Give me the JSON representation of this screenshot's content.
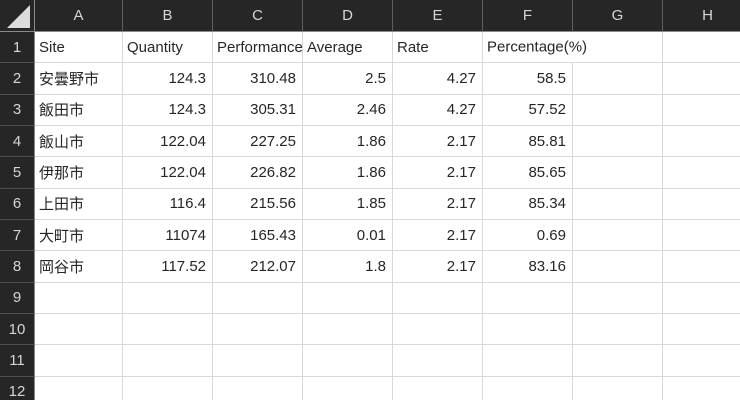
{
  "grid": {
    "columns": [
      "A",
      "B",
      "C",
      "D",
      "E",
      "F",
      "G",
      "H"
    ],
    "rows": [
      {
        "n": "1",
        "values": [
          "Site",
          "Quantity",
          "Performance",
          "Average",
          "Rate",
          "Percentage(%)",
          "",
          ""
        ]
      },
      {
        "n": "2",
        "values": [
          "安曇野市",
          "124.3",
          "310.48",
          "2.5",
          "4.27",
          "58.5",
          "",
          ""
        ]
      },
      {
        "n": "3",
        "values": [
          "飯田市",
          "124.3",
          "305.31",
          "2.46",
          "4.27",
          "57.52",
          "",
          ""
        ]
      },
      {
        "n": "4",
        "values": [
          "飯山市",
          "122.04",
          "227.25",
          "1.86",
          "2.17",
          "85.81",
          "",
          ""
        ]
      },
      {
        "n": "5",
        "values": [
          "伊那市",
          "122.04",
          "226.82",
          "1.86",
          "2.17",
          "85.65",
          "",
          ""
        ]
      },
      {
        "n": "6",
        "values": [
          "上田市",
          "116.4",
          "215.56",
          "1.85",
          "2.17",
          "85.34",
          "",
          ""
        ]
      },
      {
        "n": "7",
        "values": [
          "大町市",
          "11074",
          "165.43",
          "0.01",
          "2.17",
          "0.69",
          "",
          ""
        ]
      },
      {
        "n": "8",
        "values": [
          "岡谷市",
          "117.52",
          "212.07",
          "1.8",
          "2.17",
          "83.16",
          "",
          ""
        ]
      },
      {
        "n": "9",
        "values": [
          "",
          "",
          "",
          "",
          "",
          "",
          "",
          ""
        ]
      },
      {
        "n": "10",
        "values": [
          "",
          "",
          "",
          "",
          "",
          "",
          "",
          ""
        ]
      },
      {
        "n": "11",
        "values": [
          "",
          "",
          "",
          "",
          "",
          "",
          "",
          ""
        ]
      },
      {
        "n": "12",
        "values": [
          "",
          "",
          "",
          "",
          "",
          "",
          "",
          ""
        ]
      }
    ]
  },
  "icons": {
    "select_all": "triangle-icon"
  },
  "colors": {
    "header_bg": "#262626",
    "header_text": "#d6d6d6",
    "header_divider": "#5e5e5e",
    "row_divider": "#4d4d4d",
    "header_edge": "#8a8a8a",
    "grid_line": "#d9d9d9",
    "cell_text": "#262626",
    "canvas_bg": "#ffffff",
    "triangle": "#dcdcdc"
  }
}
